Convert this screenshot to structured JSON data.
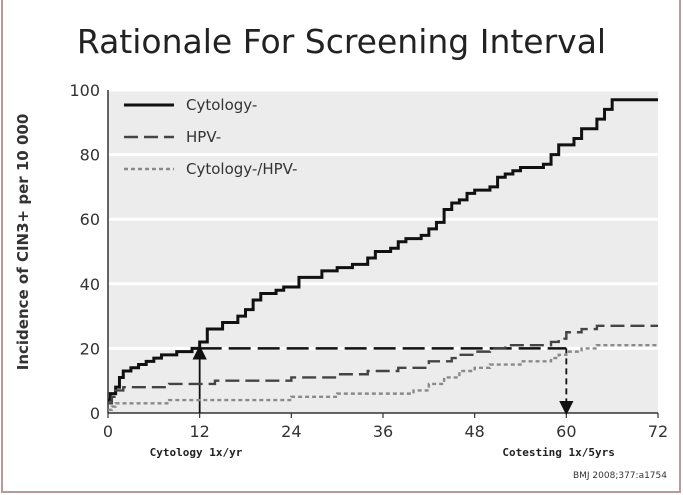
{
  "slide": {
    "title": "Rationale For Screening Interval",
    "citation": "BMJ 2008;377:a1754"
  },
  "chart_data": {
    "type": "line",
    "title": "",
    "xlabel": "",
    "ylabel": "Incidence of CIN3+ per 10 000",
    "xlim": [
      0,
      72
    ],
    "ylim": [
      0,
      100
    ],
    "x_ticks": [
      0,
      12,
      24,
      36,
      48,
      60,
      72
    ],
    "y_ticks": [
      0,
      20,
      40,
      60,
      80,
      100
    ],
    "grid": true,
    "legend_position": "top-left",
    "series": [
      {
        "name": "Cytology-",
        "style": "solid",
        "color": "#111111",
        "points": [
          [
            0,
            4
          ],
          [
            0.3,
            6
          ],
          [
            1,
            8
          ],
          [
            1.5,
            11
          ],
          [
            2,
            13
          ],
          [
            3,
            14
          ],
          [
            4,
            15
          ],
          [
            5,
            16
          ],
          [
            6,
            17
          ],
          [
            7,
            18
          ],
          [
            9,
            19
          ],
          [
            11,
            20
          ],
          [
            12,
            22
          ],
          [
            13,
            26
          ],
          [
            15,
            28
          ],
          [
            17,
            30
          ],
          [
            18,
            32
          ],
          [
            19,
            35
          ],
          [
            20,
            37
          ],
          [
            22,
            38
          ],
          [
            23,
            39
          ],
          [
            25,
            42
          ],
          [
            28,
            44
          ],
          [
            30,
            45
          ],
          [
            32,
            46
          ],
          [
            34,
            48
          ],
          [
            35,
            50
          ],
          [
            37,
            51
          ],
          [
            38,
            53
          ],
          [
            39,
            54
          ],
          [
            41,
            55
          ],
          [
            42,
            57
          ],
          [
            43,
            59
          ],
          [
            44,
            63
          ],
          [
            45,
            65
          ],
          [
            46,
            66
          ],
          [
            47,
            68
          ],
          [
            48,
            69
          ],
          [
            50,
            70
          ],
          [
            51,
            73
          ],
          [
            52,
            74
          ],
          [
            53,
            75
          ],
          [
            54,
            76
          ],
          [
            57,
            77
          ],
          [
            58,
            80
          ],
          [
            59,
            83
          ],
          [
            61,
            85
          ],
          [
            62,
            88
          ],
          [
            64,
            91
          ],
          [
            65,
            94
          ],
          [
            66,
            97
          ],
          [
            67,
            97
          ],
          [
            72,
            97
          ]
        ]
      },
      {
        "name": "HPV-",
        "style": "dashed",
        "color": "#444444",
        "points": [
          [
            0,
            3
          ],
          [
            0.5,
            5
          ],
          [
            1,
            7
          ],
          [
            2,
            8
          ],
          [
            6,
            8
          ],
          [
            8,
            9
          ],
          [
            12,
            9
          ],
          [
            14,
            10
          ],
          [
            21,
            10
          ],
          [
            24,
            11
          ],
          [
            30,
            12
          ],
          [
            34,
            13
          ],
          [
            38,
            14
          ],
          [
            42,
            16
          ],
          [
            45,
            17
          ],
          [
            46,
            18
          ],
          [
            48,
            19
          ],
          [
            50,
            20
          ],
          [
            52,
            21
          ],
          [
            56,
            21
          ],
          [
            58,
            22
          ],
          [
            59,
            23
          ],
          [
            60,
            25
          ],
          [
            62,
            26
          ],
          [
            64,
            27
          ],
          [
            72,
            27
          ]
        ]
      },
      {
        "name": "Cytology-/HPV-",
        "style": "dotted",
        "color": "#8a8a8a",
        "points": [
          [
            0,
            1
          ],
          [
            0.5,
            2
          ],
          [
            1,
            3
          ],
          [
            4,
            3
          ],
          [
            8,
            4
          ],
          [
            20,
            4
          ],
          [
            24,
            5
          ],
          [
            28,
            5
          ],
          [
            30,
            6
          ],
          [
            36,
            6
          ],
          [
            40,
            7
          ],
          [
            42,
            9
          ],
          [
            44,
            11
          ],
          [
            46,
            13
          ],
          [
            48,
            14
          ],
          [
            50,
            15
          ],
          [
            54,
            16
          ],
          [
            58,
            17
          ],
          [
            59,
            18
          ],
          [
            60,
            19
          ],
          [
            62,
            20
          ],
          [
            64,
            21
          ],
          [
            72,
            21
          ]
        ]
      }
    ],
    "annotations": [
      {
        "text": "Cytology 1x/yr",
        "x": 12
      },
      {
        "text": "Cotesting 1x/5yrs",
        "x": 60
      }
    ],
    "reference_line": {
      "y": 20,
      "x_from": 12,
      "x_to": 60
    }
  }
}
